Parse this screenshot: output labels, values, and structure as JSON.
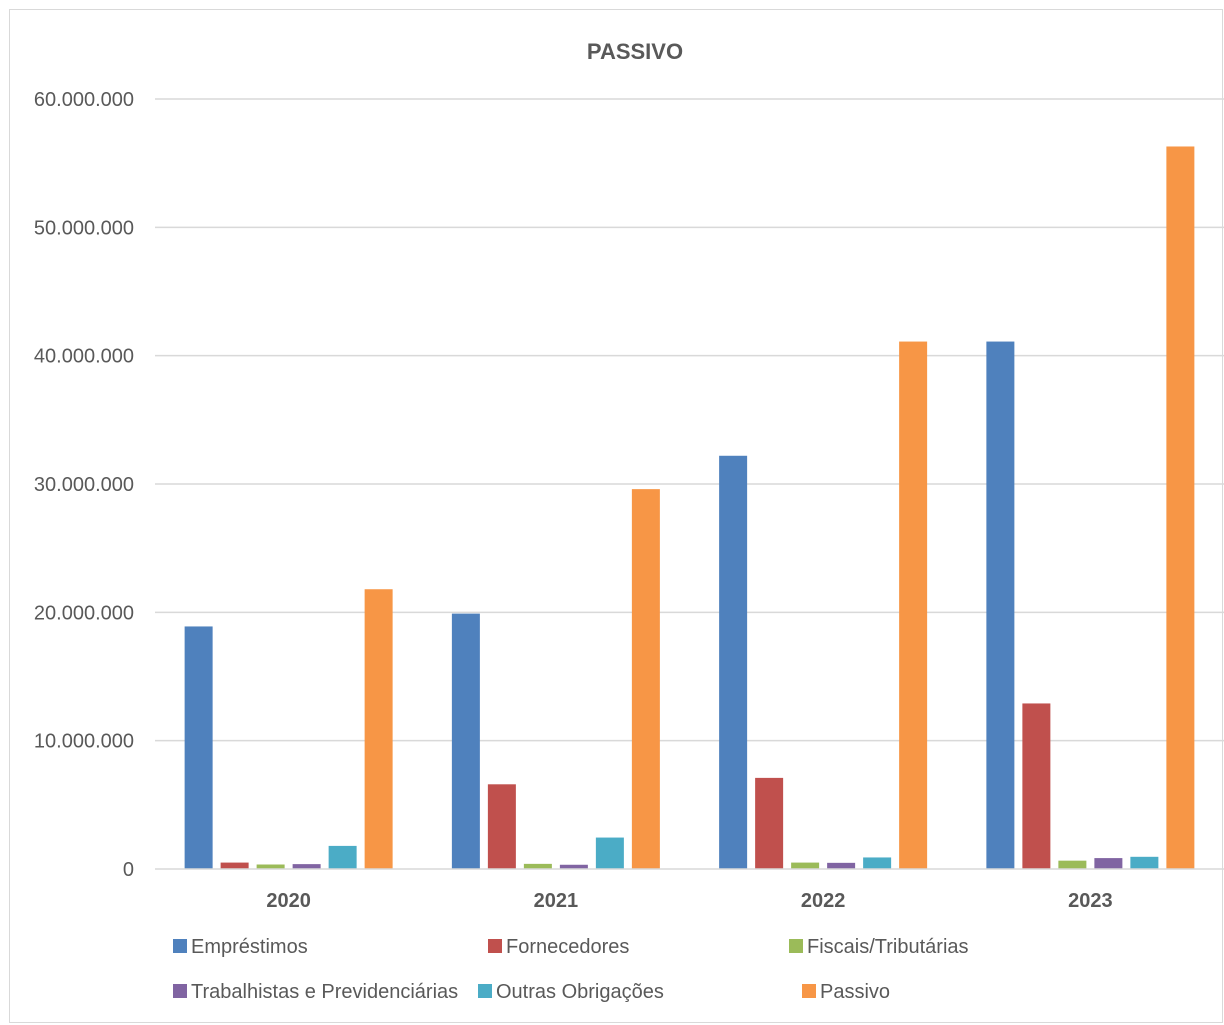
{
  "chart_data": {
    "type": "bar",
    "title": "PASSIVO",
    "xlabel": "",
    "ylabel": "",
    "categories": [
      "2020",
      "2021",
      "2022",
      "2023"
    ],
    "ylim": [
      0,
      60000000
    ],
    "yticks": [
      0,
      10000000,
      20000000,
      30000000,
      40000000,
      50000000,
      60000000
    ],
    "ytick_labels": [
      "0",
      "10.000.000",
      "20.000.000",
      "30.000.000",
      "40.000.000",
      "50.000.000",
      "60.000.000"
    ],
    "grid": true,
    "legend_position": "bottom",
    "series": [
      {
        "name": "Empréstimos",
        "color": "#4f81bd",
        "values": [
          18900000,
          19900000,
          32200000,
          41100000
        ]
      },
      {
        "name": "Fornecedores",
        "color": "#c0504d",
        "values": [
          500000,
          6600000,
          7100000,
          12900000
        ]
      },
      {
        "name": "Fiscais/Tributárias",
        "color": "#9bbb59",
        "values": [
          350000,
          400000,
          500000,
          650000
        ]
      },
      {
        "name": "Trabalhistas e Previdenciárias",
        "color": "#8064a2",
        "values": [
          380000,
          330000,
          480000,
          850000
        ]
      },
      {
        "name": "Outras Obrigações",
        "color": "#4bacc6",
        "values": [
          1800000,
          2450000,
          900000,
          950000
        ]
      },
      {
        "name": "Passivo",
        "color": "#f79646",
        "values": [
          21800000,
          29600000,
          41100000,
          56300000
        ]
      }
    ]
  }
}
